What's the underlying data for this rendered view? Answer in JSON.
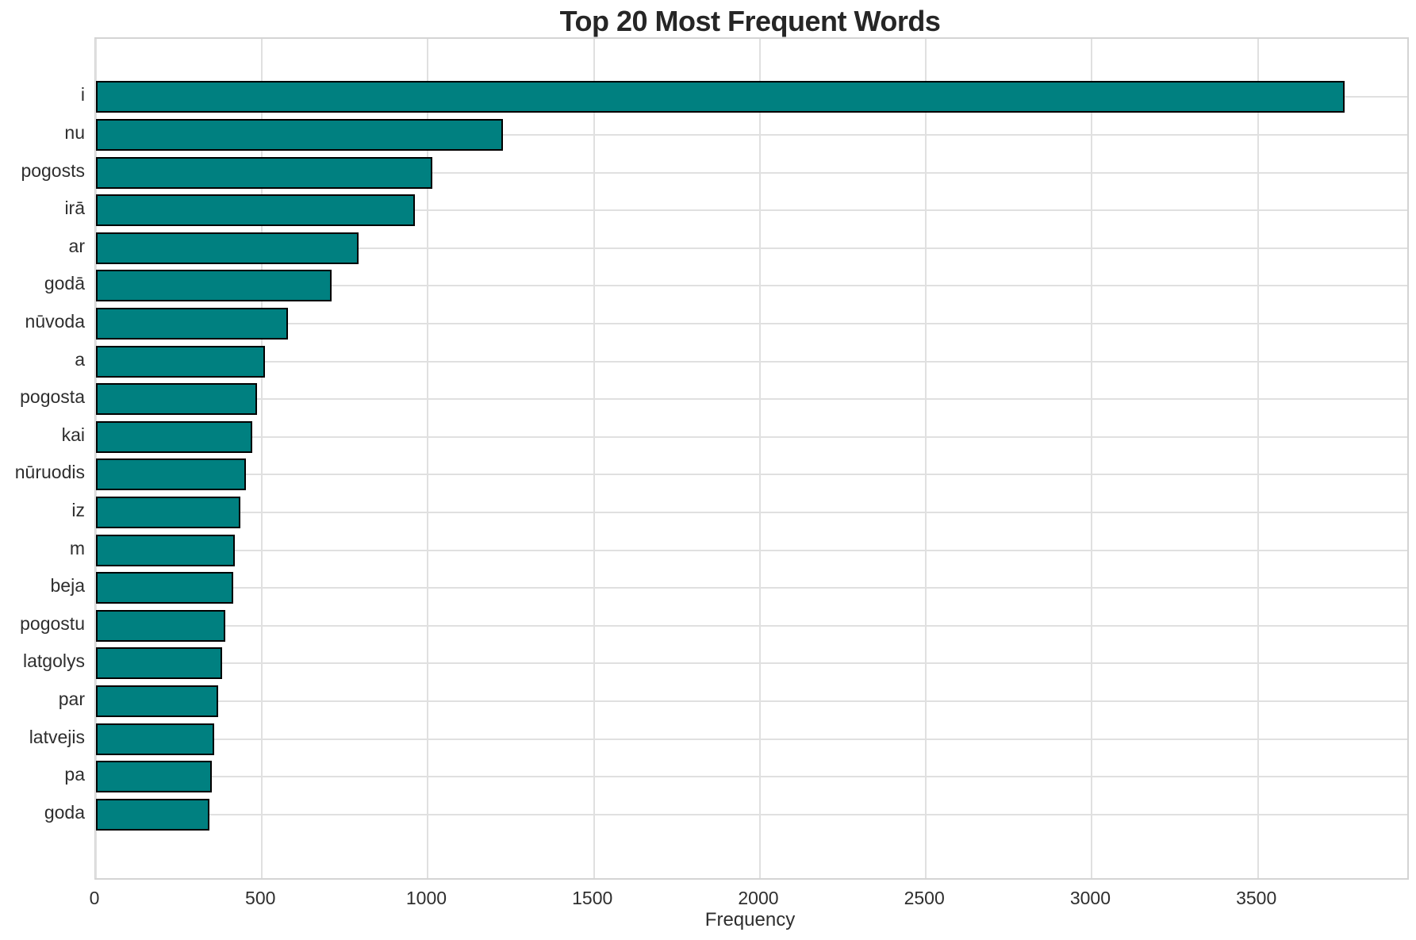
{
  "title": "Top 20 Most Frequent Words",
  "chart_data": {
    "type": "bar",
    "orientation": "horizontal",
    "title": "Top 20 Most Frequent Words",
    "xlabel": "Frequency",
    "ylabel": "",
    "categories": [
      "i",
      "nu",
      "pogosts",
      "irā",
      "ar",
      "godā",
      "nūvoda",
      "a",
      "pogosta",
      "kai",
      "nūruodis",
      "iz",
      "m",
      "beja",
      "pogostu",
      "latgolys",
      "par",
      "latvejis",
      "pa",
      "goda"
    ],
    "values": [
      3762,
      1226,
      1014,
      961,
      790,
      710,
      578,
      509,
      486,
      470,
      451,
      434,
      419,
      413,
      389,
      381,
      367,
      357,
      349,
      341
    ],
    "xlim": [
      0,
      3950
    ],
    "xticks": [
      0,
      500,
      1000,
      1500,
      2000,
      2500,
      3000,
      3500
    ],
    "grid": true,
    "legend": "none",
    "bar_color": "#008080",
    "bar_edge_color": "#000000",
    "grid_color": "#e0e0e0",
    "spine_color": "#d4d4d4",
    "text_color": "#2e2e2e",
    "title_color": "#262626",
    "background_color": "#ffffff"
  }
}
